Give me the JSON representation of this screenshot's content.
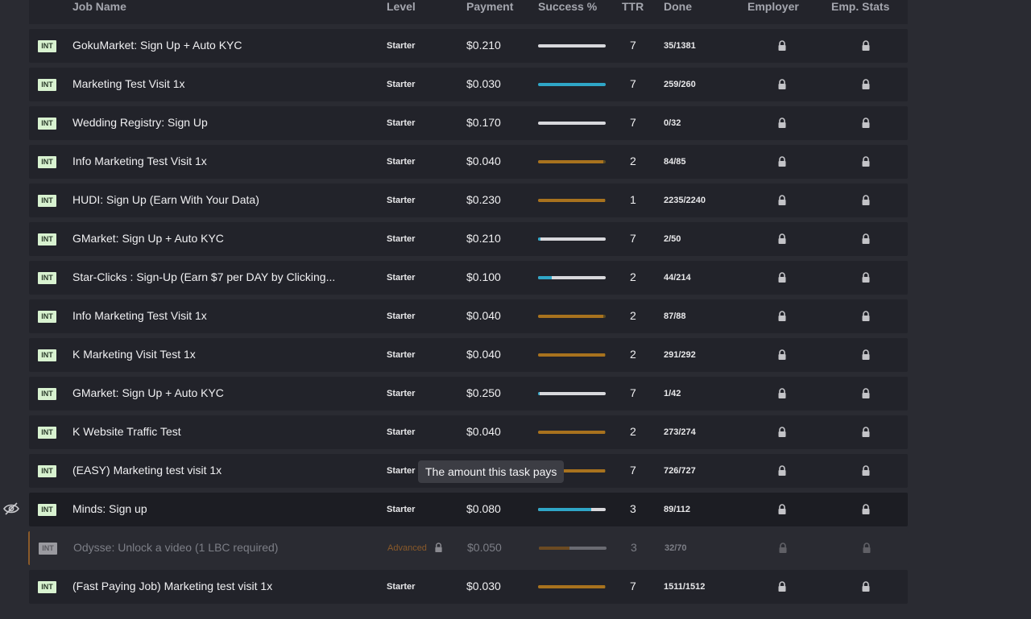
{
  "columns": {
    "job_name": "Job Name",
    "level": "Level",
    "payment": "Payment",
    "success": "Success %",
    "ttr": "TTR",
    "done": "Done",
    "employer": "Employer",
    "emp_stats": "Emp. Stats"
  },
  "tag_label": "INT",
  "tooltip": "The amount this task pays",
  "rows": [
    {
      "name": "GokuMarket: Sign Up + Auto KYC",
      "level": "Starter",
      "payment": "$0.210",
      "success": 0.0,
      "color": "white",
      "ttr": "7",
      "done": "35/1381"
    },
    {
      "name": "Marketing Test Visit 1x",
      "level": "Starter",
      "payment": "$0.030",
      "success": 1.0,
      "color": "blue",
      "ttr": "7",
      "done": "259/260"
    },
    {
      "name": "Wedding Registry: Sign Up",
      "level": "Starter",
      "payment": "$0.170",
      "success": 0.0,
      "color": "white",
      "ttr": "7",
      "done": "0/32"
    },
    {
      "name": "Info Marketing Test Visit 1x",
      "level": "Starter",
      "payment": "$0.040",
      "success": 0.96,
      "color": "orange",
      "ttr": "2",
      "done": "84/85"
    },
    {
      "name": "HUDI: Sign Up (Earn With Your Data)",
      "level": "Starter",
      "payment": "$0.230",
      "success": 0.99,
      "color": "orange",
      "ttr": "1",
      "done": "2235/2240"
    },
    {
      "name": "GMarket: Sign Up + Auto KYC",
      "level": "Starter",
      "payment": "$0.210",
      "success": 0.03,
      "color": "white",
      "ttr": "7",
      "done": "2/50"
    },
    {
      "name": "Star-Clicks : Sign-Up (Earn $7 per DAY by Clicking...",
      "level": "Starter",
      "payment": "$0.100",
      "success": 0.2,
      "color": "white",
      "ttr": "2",
      "done": "44/214"
    },
    {
      "name": "Info Marketing Test Visit 1x",
      "level": "Starter",
      "payment": "$0.040",
      "success": 0.96,
      "color": "orange",
      "ttr": "2",
      "done": "87/88"
    },
    {
      "name": "K Marketing Visit Test 1x",
      "level": "Starter",
      "payment": "$0.040",
      "success": 0.99,
      "color": "orange",
      "ttr": "2",
      "done": "291/292"
    },
    {
      "name": "GMarket: Sign Up + Auto KYC",
      "level": "Starter",
      "payment": "$0.250",
      "success": 0.02,
      "color": "white",
      "ttr": "7",
      "done": "1/42"
    },
    {
      "name": "K Website Traffic Test",
      "level": "Starter",
      "payment": "$0.040",
      "success": 0.99,
      "color": "orange",
      "ttr": "2",
      "done": "273/274"
    },
    {
      "name": "(EASY) Marketing test visit 1x",
      "level": "Starter",
      "payment": "",
      "success": 0.99,
      "color": "orange",
      "ttr": "7",
      "done": "726/727"
    },
    {
      "name": "Minds: Sign up",
      "level": "Starter",
      "payment": "$0.080",
      "success": 0.78,
      "color": "blue",
      "ttr": "3",
      "done": "89/112"
    },
    {
      "name": "Odysse: Unlock a video (1 LBC required)",
      "level": "Advanced",
      "payment": "$0.050",
      "success": 0.45,
      "color": "orange",
      "ttr": "3",
      "done": "32/70"
    },
    {
      "name": "(Fast Paying Job) Marketing test visit 1x",
      "level": "Starter",
      "payment": "$0.030",
      "success": 0.99,
      "color": "orange",
      "ttr": "7",
      "done": "1511/1512"
    }
  ]
}
